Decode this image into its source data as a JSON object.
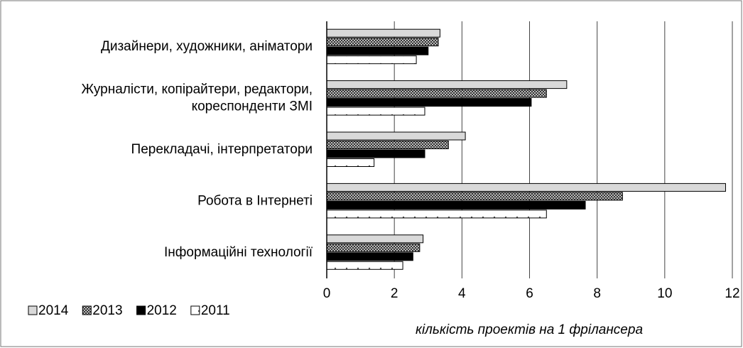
{
  "chart_data": {
    "type": "bar",
    "orientation": "horizontal",
    "x_label": "кількість проектів на 1 фрілансера",
    "categories": [
      "Дизайнери, художники, аніматори",
      "Журналісти, копірайтери, редактори,\nкореспонденти ЗМІ",
      "Перекладачі, інтерпретатори",
      "Робота в Інтернеті",
      "Інформаційні технології"
    ],
    "series": [
      {
        "name": "2014",
        "color": "#d9d9d9",
        "pattern": "solid",
        "values": [
          3.35,
          7.1,
          4.1,
          11.8,
          2.85
        ]
      },
      {
        "name": "2013",
        "color": "#595959",
        "pattern": "crosshatch",
        "values": [
          3.3,
          6.5,
          3.6,
          8.75,
          2.75
        ]
      },
      {
        "name": "2012",
        "color": "#000000",
        "pattern": "solid",
        "values": [
          3.0,
          6.05,
          2.9,
          7.65,
          2.55
        ]
      },
      {
        "name": "2011",
        "color": "#ffffff",
        "pattern": "dots",
        "values": [
          2.65,
          2.9,
          1.4,
          6.5,
          2.25
        ]
      }
    ],
    "xlim": [
      0,
      12
    ],
    "xticks": [
      0,
      2,
      4,
      6,
      8,
      10,
      12
    ],
    "grid": true,
    "legend": "bottom-left"
  }
}
